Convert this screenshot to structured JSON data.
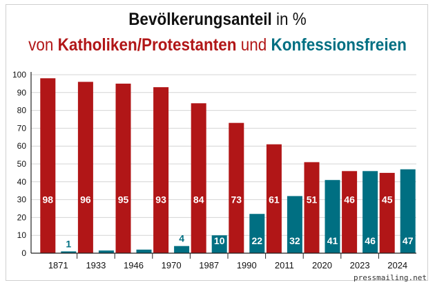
{
  "title": {
    "line1_bold": "Bevölkerungsanteil",
    "line1_rest": " in %",
    "line2_von": "von ",
    "line2_group1": "Katholiken/Protestanten",
    "line2_und": " und ",
    "line2_group2": "Konfessionsfreien"
  },
  "watermark": "pressmailing.net",
  "colors": {
    "katholiken_protestanten": "#b11617",
    "konfessionsfreie": "#006f82",
    "axis": "#222222",
    "grid": "#d4d4d4"
  },
  "chart_data": {
    "type": "bar",
    "categories": [
      "1871",
      "1933",
      "1946",
      "1970",
      "1987",
      "1990",
      "2011",
      "2020",
      "2023",
      "2024"
    ],
    "series": [
      {
        "name": "Katholiken/Protestanten",
        "values": [
          98,
          96,
          95,
          93,
          84,
          73,
          61,
          51,
          46,
          45
        ]
      },
      {
        "name": "Konfessionsfreien",
        "values": [
          1,
          1.5,
          2,
          4,
          10,
          22,
          32,
          41,
          46,
          47
        ]
      }
    ],
    "data_labels": [
      [
        "98",
        "96",
        "95",
        "93",
        "84",
        "73",
        "61",
        "51",
        "46",
        "45"
      ],
      [
        "1",
        "",
        "",
        "4",
        "10",
        "22",
        "32",
        "41",
        "46",
        "47"
      ]
    ],
    "yticks": [
      0,
      10,
      20,
      30,
      40,
      50,
      60,
      70,
      80,
      90,
      100
    ],
    "ylim": [
      0,
      100
    ],
    "grid": true,
    "legend": "in title"
  }
}
